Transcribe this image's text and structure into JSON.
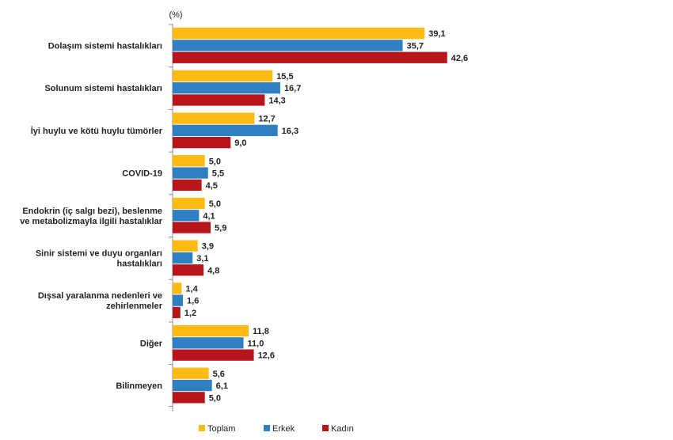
{
  "chart_data": {
    "type": "bar",
    "orientation": "horizontal",
    "unit_label": "(%)",
    "categories": [
      [
        "Dolaşım sistemi hastalıkları"
      ],
      [
        "Solunum sistemi hastalıkları"
      ],
      [
        "İyi huylu ve kötü huylu tümörler"
      ],
      [
        "COVID-19"
      ],
      [
        "Endokrin (iç salgı bezi), beslenme",
        "ve metabolizmayla ilgili hastalıklar"
      ],
      [
        "Sinir sistemi ve duyu organları",
        "hastalıkları"
      ],
      [
        "Dışsal yaralanma nedenleri ve",
        "zehirlenmeler"
      ],
      [
        "Diğer"
      ],
      [
        "Bilinmeyen"
      ]
    ],
    "series": [
      {
        "name": "Toplam",
        "color": "#FDBA12",
        "values": [
          39.1,
          15.5,
          12.7,
          5.0,
          5.0,
          3.9,
          1.4,
          11.8,
          5.6
        ],
        "labels": [
          "39,1",
          "15,5",
          "12,7",
          "5,0",
          "5,0",
          "3,9",
          "1,4",
          "11,8",
          "5,6"
        ]
      },
      {
        "name": "Erkek",
        "color": "#2E7FC3",
        "values": [
          35.7,
          16.7,
          16.3,
          5.5,
          4.1,
          3.1,
          1.6,
          11.0,
          6.1
        ],
        "labels": [
          "35,7",
          "16,7",
          "16,3",
          "5,5",
          "4,1",
          "3,1",
          "1,6",
          "11,0",
          "6,1"
        ]
      },
      {
        "name": "Kadın",
        "color": "#B5151B",
        "values": [
          42.6,
          14.3,
          9.0,
          4.5,
          5.9,
          4.8,
          1.2,
          12.6,
          5.0
        ],
        "labels": [
          "42,6",
          "14,3",
          "9,0",
          "4,5",
          "5,9",
          "4,8",
          "1,2",
          "12,6",
          "5,0"
        ]
      }
    ],
    "xlim": [
      0,
      45
    ],
    "legend_position": "bottom-center",
    "grid": false
  }
}
